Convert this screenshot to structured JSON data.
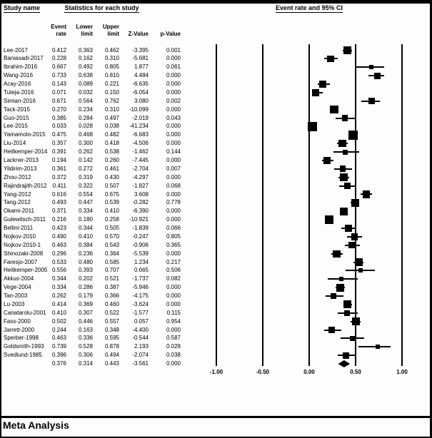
{
  "figure": {
    "study_name_header": "Study name",
    "stats_header": "Statistics for each study",
    "plot_header": "Event rate and 95% CI",
    "col_headers": {
      "event_line1": "Event",
      "event_line2": "rate",
      "lower_line1": "Lower",
      "lower_line2": "limit",
      "upper_line1": "Upper",
      "upper_line2": "limit",
      "z": "Z-Value",
      "p": "p-Value"
    },
    "footer_label": "Meta Analysis"
  },
  "chart_data": {
    "type": "forest",
    "title": "Event rate and 95% CI",
    "xlabel": "Event rate",
    "xlim": [
      -1.0,
      1.0
    ],
    "xtick_labels": [
      "-1.00",
      "-0.50",
      "0.00",
      "0.50",
      "1.00"
    ],
    "columns": [
      "Study name",
      "Event rate",
      "Lower limit",
      "Upper limit",
      "Z-Value",
      "p-Value"
    ],
    "studies": [
      {
        "name": "Lee-2017",
        "rate": "0.412",
        "lower": "0.363",
        "upper": "0.462",
        "z": "-3.395",
        "p": "0.001"
      },
      {
        "name": "Baniasadi-2017",
        "rate": "0.228",
        "lower": "0.162",
        "upper": "0.310",
        "z": "-5.681",
        "p": "0.000"
      },
      {
        "name": "Ibrahim-2016",
        "rate": "0.667",
        "lower": "0.492",
        "upper": "0.805",
        "z": "1.877",
        "p": "0.061"
      },
      {
        "name": "Wang-2016",
        "rate": "0.733",
        "lower": "0.638",
        "upper": "0.810",
        "z": "4.484",
        "p": "0.000"
      },
      {
        "name": "Acay-2016",
        "rate": "0.143",
        "lower": "0.089",
        "upper": "0.221",
        "z": "-6.635",
        "p": "0.000"
      },
      {
        "name": "Tuteja-2016",
        "rate": "0.071",
        "lower": "0.032",
        "upper": "0.150",
        "z": "-6.054",
        "p": "0.000"
      },
      {
        "name": "Simian-2016",
        "rate": "0.671",
        "lower": "0.564",
        "upper": "0.762",
        "z": "3.080",
        "p": "0.002"
      },
      {
        "name": "Tack-2015",
        "rate": "0.270",
        "lower": "0.234",
        "upper": "0.310",
        "z": "-10.099",
        "p": "0.000"
      },
      {
        "name": "Guo-2015",
        "rate": "0.385",
        "lower": "0.284",
        "upper": "0.497",
        "z": "-2.019",
        "p": "0.043"
      },
      {
        "name": "Lee-2015",
        "rate": "0.033",
        "lower": "0.028",
        "upper": "0.038",
        "z": "-41.234",
        "p": "0.000"
      },
      {
        "name": "Yamamoto-2015",
        "rate": "0.475",
        "lower": "0.468",
        "upper": "0.482",
        "z": "-6.683",
        "p": "0.000"
      },
      {
        "name": "Liu-2014",
        "rate": "0.357",
        "lower": "0.300",
        "upper": "0.418",
        "z": "-4.506",
        "p": "0.000"
      },
      {
        "name": "Heitkemper-2014",
        "rate": "0.391",
        "lower": "0.262",
        "upper": "0.538",
        "z": "-1.462",
        "p": "0.144"
      },
      {
        "name": "Lackner-2013",
        "rate": "0.194",
        "lower": "0.142",
        "upper": "0.260",
        "z": "-7.445",
        "p": "0.000"
      },
      {
        "name": "Yildirim-2013",
        "rate": "0.361",
        "lower": "0.272",
        "upper": "0.461",
        "z": "-2.704",
        "p": "0.007"
      },
      {
        "name": "Zhou-2012",
        "rate": "0.372",
        "lower": "0.319",
        "upper": "0.430",
        "z": "-4.297",
        "p": "0.000"
      },
      {
        "name": "Rajindrajith-2012",
        "rate": "0.411",
        "lower": "0.322",
        "upper": "0.507",
        "z": "-1.827",
        "p": "0.068"
      },
      {
        "name": "Yang-2012",
        "rate": "0.616",
        "lower": "0.554",
        "upper": "0.675",
        "z": "3.608",
        "p": "0.000"
      },
      {
        "name": "Tang-2012",
        "rate": "0.493",
        "lower": "0.447",
        "upper": "0.539",
        "z": "-0.282",
        "p": "0.778"
      },
      {
        "name": "Okami-2011",
        "rate": "0.371",
        "lower": "0.334",
        "upper": "0.410",
        "z": "-6.390",
        "p": "0.000"
      },
      {
        "name": "Gulewitsch-2011",
        "rate": "0.216",
        "lower": "0.180",
        "upper": "0.258",
        "z": "-10.921",
        "p": "0.000"
      },
      {
        "name": "Bellini-2011",
        "rate": "0.423",
        "lower": "0.344",
        "upper": "0.505",
        "z": "-1.839",
        "p": "0.066"
      },
      {
        "name": "Nojkov-2010",
        "rate": "0.490",
        "lower": "0.410",
        "upper": "0.570",
        "z": "-0.247",
        "p": "0.805"
      },
      {
        "name": "Nojkov-2010-1",
        "rate": "0.463",
        "lower": "0.384",
        "upper": "0.543",
        "z": "-0.906",
        "p": "0.365"
      },
      {
        "name": "Shinozaki-2008",
        "rate": "0.296",
        "lower": "0.236",
        "upper": "0.364",
        "z": "-5.539",
        "p": "0.000"
      },
      {
        "name": "Faresjo-2007",
        "rate": "0.533",
        "lower": "0.480",
        "upper": "0.585",
        "z": "1.234",
        "p": "0.217"
      },
      {
        "name": "Heitkemper-2005",
        "rate": "0.556",
        "lower": "0.393",
        "upper": "0.707",
        "z": "0.665",
        "p": "0.506"
      },
      {
        "name": "Akkus-2004",
        "rate": "0.344",
        "lower": "0.202",
        "upper": "0.521",
        "z": "-1.737",
        "p": "0.082"
      },
      {
        "name": "Vege-2004",
        "rate": "0.334",
        "lower": "0.286",
        "upper": "0.387",
        "z": "-5.946",
        "p": "0.000"
      },
      {
        "name": "Tan-2003",
        "rate": "0.262",
        "lower": "0.179",
        "upper": "0.366",
        "z": "-4.175",
        "p": "0.000"
      },
      {
        "name": "Lu-2003",
        "rate": "0.414",
        "lower": "0.369",
        "upper": "0.460",
        "z": "-3.624",
        "p": "0.000"
      },
      {
        "name": "Canatarolu-2001",
        "rate": "0.410",
        "lower": "0.307",
        "upper": "0.522",
        "z": "-1.577",
        "p": "0.115"
      },
      {
        "name": "Fass-2000",
        "rate": "0.502",
        "lower": "0.446",
        "upper": "0.557",
        "z": "0.057",
        "p": "0.954"
      },
      {
        "name": "Jarrett-2000",
        "rate": "0.244",
        "lower": "0.163",
        "upper": "0.348",
        "z": "-4.400",
        "p": "0.000"
      },
      {
        "name": "Sperber-1998",
        "rate": "0.463",
        "lower": "0.336",
        "upper": "0.595",
        "z": "-0.544",
        "p": "0.587"
      },
      {
        "name": "Goldsmith-1993",
        "rate": "0.739",
        "lower": "0.528",
        "upper": "0.878",
        "z": "2.193",
        "p": "0.028"
      },
      {
        "name": "Svedlund-1985",
        "rate": "0.396",
        "lower": "0.306",
        "upper": "0.494",
        "z": "-2.074",
        "p": "0.038"
      }
    ],
    "summary": {
      "name": "",
      "rate": "0.376",
      "lower": "0.314",
      "upper": "0.443",
      "z": "-3.561",
      "p": "0.000"
    }
  }
}
